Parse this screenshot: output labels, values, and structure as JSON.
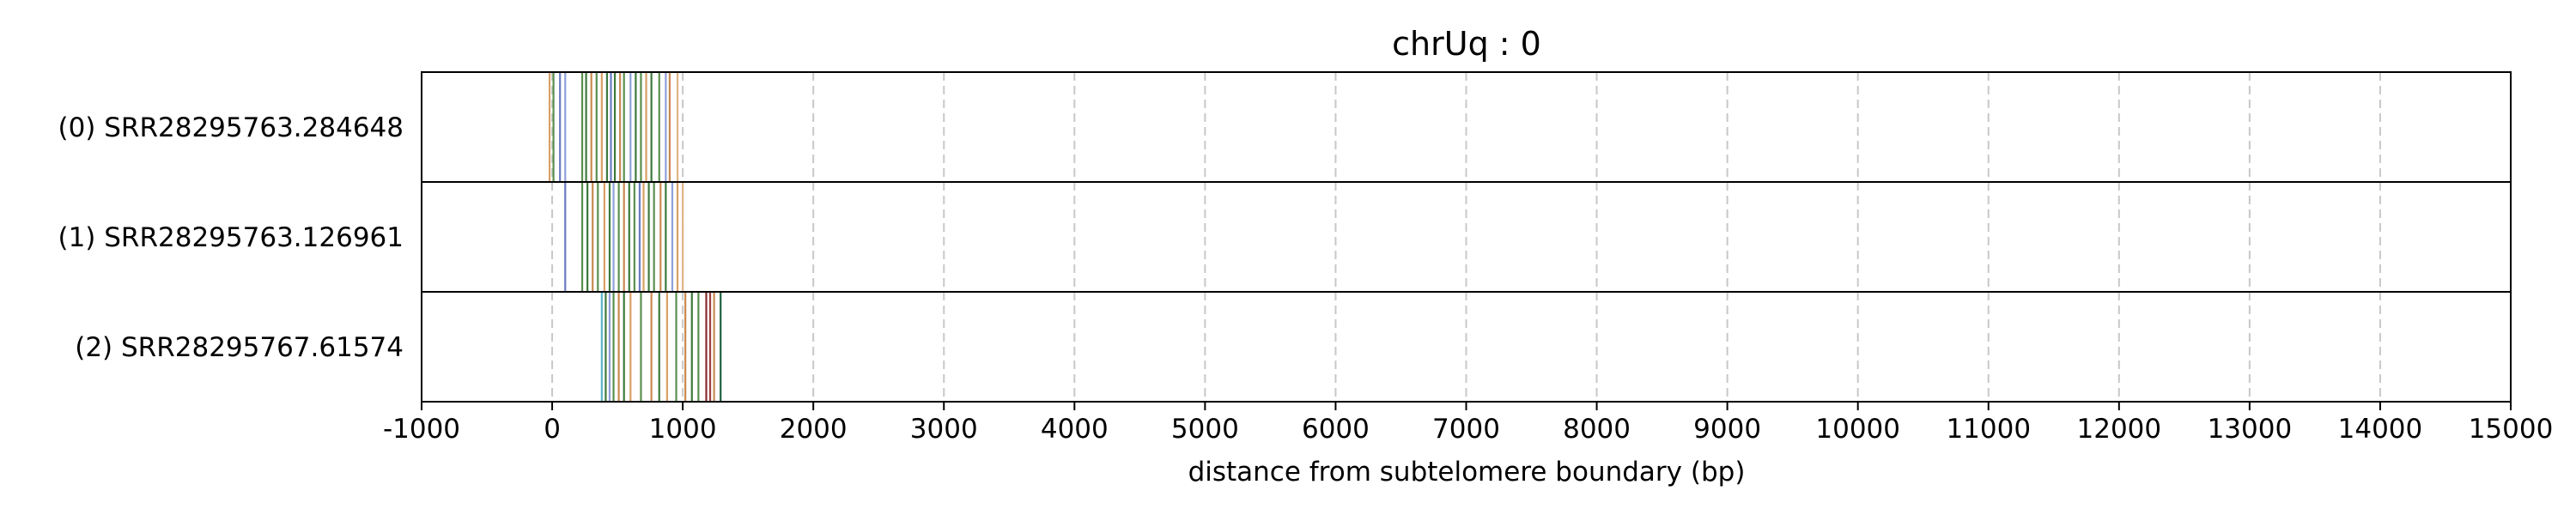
{
  "chart_data": {
    "type": "event-track",
    "title": "chrUq : 0",
    "xlabel": "distance from subtelomere boundary (bp)",
    "ylabel": "",
    "xlim": [
      -1000,
      15000
    ],
    "xticks": [
      -1000,
      0,
      1000,
      2000,
      3000,
      4000,
      5000,
      6000,
      7000,
      8000,
      9000,
      10000,
      11000,
      12000,
      13000,
      14000,
      15000
    ],
    "xtick_labels": [
      "-1000",
      "0",
      "1000",
      "2000",
      "3000",
      "4000",
      "5000",
      "6000",
      "7000",
      "8000",
      "9000",
      "10000",
      "11000",
      "12000",
      "13000",
      "14000",
      "15000"
    ],
    "grid": "vertical dashed",
    "rows": [
      {
        "label": "(0) SRR28295763.284648",
        "events": [
          {
            "x": -20,
            "color": "#d9a066"
          },
          {
            "x": 10,
            "color": "#5a8f4e"
          },
          {
            "x": 60,
            "color": "#6b7bc4"
          },
          {
            "x": 100,
            "color": "#8fa0d8"
          },
          {
            "x": 230,
            "color": "#5a8f4e"
          },
          {
            "x": 260,
            "color": "#3d7a3d"
          },
          {
            "x": 300,
            "color": "#c98a52"
          },
          {
            "x": 340,
            "color": "#5a8f4e"
          },
          {
            "x": 380,
            "color": "#d9a066"
          },
          {
            "x": 420,
            "color": "#3d7a3d"
          },
          {
            "x": 450,
            "color": "#6b7bc4"
          },
          {
            "x": 480,
            "color": "#3d7a3d"
          },
          {
            "x": 520,
            "color": "#c98a52"
          },
          {
            "x": 550,
            "color": "#5a8f4e"
          },
          {
            "x": 600,
            "color": "#8fa0d8"
          },
          {
            "x": 640,
            "color": "#3d7a3d"
          },
          {
            "x": 680,
            "color": "#5a8f4e"
          },
          {
            "x": 720,
            "color": "#d9a066"
          },
          {
            "x": 760,
            "color": "#3d7a3d"
          },
          {
            "x": 820,
            "color": "#5a8f4e"
          },
          {
            "x": 870,
            "color": "#8fa0d8"
          },
          {
            "x": 900,
            "color": "#c98a52"
          },
          {
            "x": 960,
            "color": "#e0b585"
          }
        ]
      },
      {
        "label": "(1) SRR28295763.126961",
        "events": [
          {
            "x": 100,
            "color": "#6b7bc4"
          },
          {
            "x": 230,
            "color": "#5a8f4e"
          },
          {
            "x": 270,
            "color": "#3d7a3d"
          },
          {
            "x": 310,
            "color": "#c98a52"
          },
          {
            "x": 350,
            "color": "#5a8f4e"
          },
          {
            "x": 400,
            "color": "#d9a066"
          },
          {
            "x": 440,
            "color": "#3d7a3d"
          },
          {
            "x": 470,
            "color": "#8fa0d8"
          },
          {
            "x": 510,
            "color": "#5a8f4e"
          },
          {
            "x": 550,
            "color": "#c98a52"
          },
          {
            "x": 590,
            "color": "#3d7a3d"
          },
          {
            "x": 630,
            "color": "#5a8f4e"
          },
          {
            "x": 670,
            "color": "#6b7bc4"
          },
          {
            "x": 700,
            "color": "#d9a066"
          },
          {
            "x": 740,
            "color": "#3d7a3d"
          },
          {
            "x": 780,
            "color": "#5a8f4e"
          },
          {
            "x": 830,
            "color": "#c98a52"
          },
          {
            "x": 870,
            "color": "#3d7a3d"
          },
          {
            "x": 920,
            "color": "#8fa0d8"
          },
          {
            "x": 960,
            "color": "#d9a066"
          },
          {
            "x": 1000,
            "color": "#e0b585"
          }
        ]
      },
      {
        "label": "(2) SRR28295767.61574",
        "events": [
          {
            "x": 380,
            "color": "#5ab4c8"
          },
          {
            "x": 410,
            "color": "#3d7a3d"
          },
          {
            "x": 440,
            "color": "#8fa0d8"
          },
          {
            "x": 470,
            "color": "#5a8f4e"
          },
          {
            "x": 510,
            "color": "#c98a52"
          },
          {
            "x": 550,
            "color": "#3d7a3d"
          },
          {
            "x": 600,
            "color": "#d9a066"
          },
          {
            "x": 680,
            "color": "#5a8f4e"
          },
          {
            "x": 760,
            "color": "#c98a52"
          },
          {
            "x": 820,
            "color": "#3d7a3d"
          },
          {
            "x": 880,
            "color": "#d9a066"
          },
          {
            "x": 950,
            "color": "#5a8f4e"
          },
          {
            "x": 1020,
            "color": "#c98a52"
          },
          {
            "x": 1070,
            "color": "#3d7a3d"
          },
          {
            "x": 1120,
            "color": "#5a8f4e"
          },
          {
            "x": 1180,
            "color": "#8b2b2b"
          },
          {
            "x": 1210,
            "color": "#a04040"
          },
          {
            "x": 1240,
            "color": "#c98a52"
          },
          {
            "x": 1290,
            "color": "#1f5f3f"
          }
        ]
      }
    ]
  }
}
